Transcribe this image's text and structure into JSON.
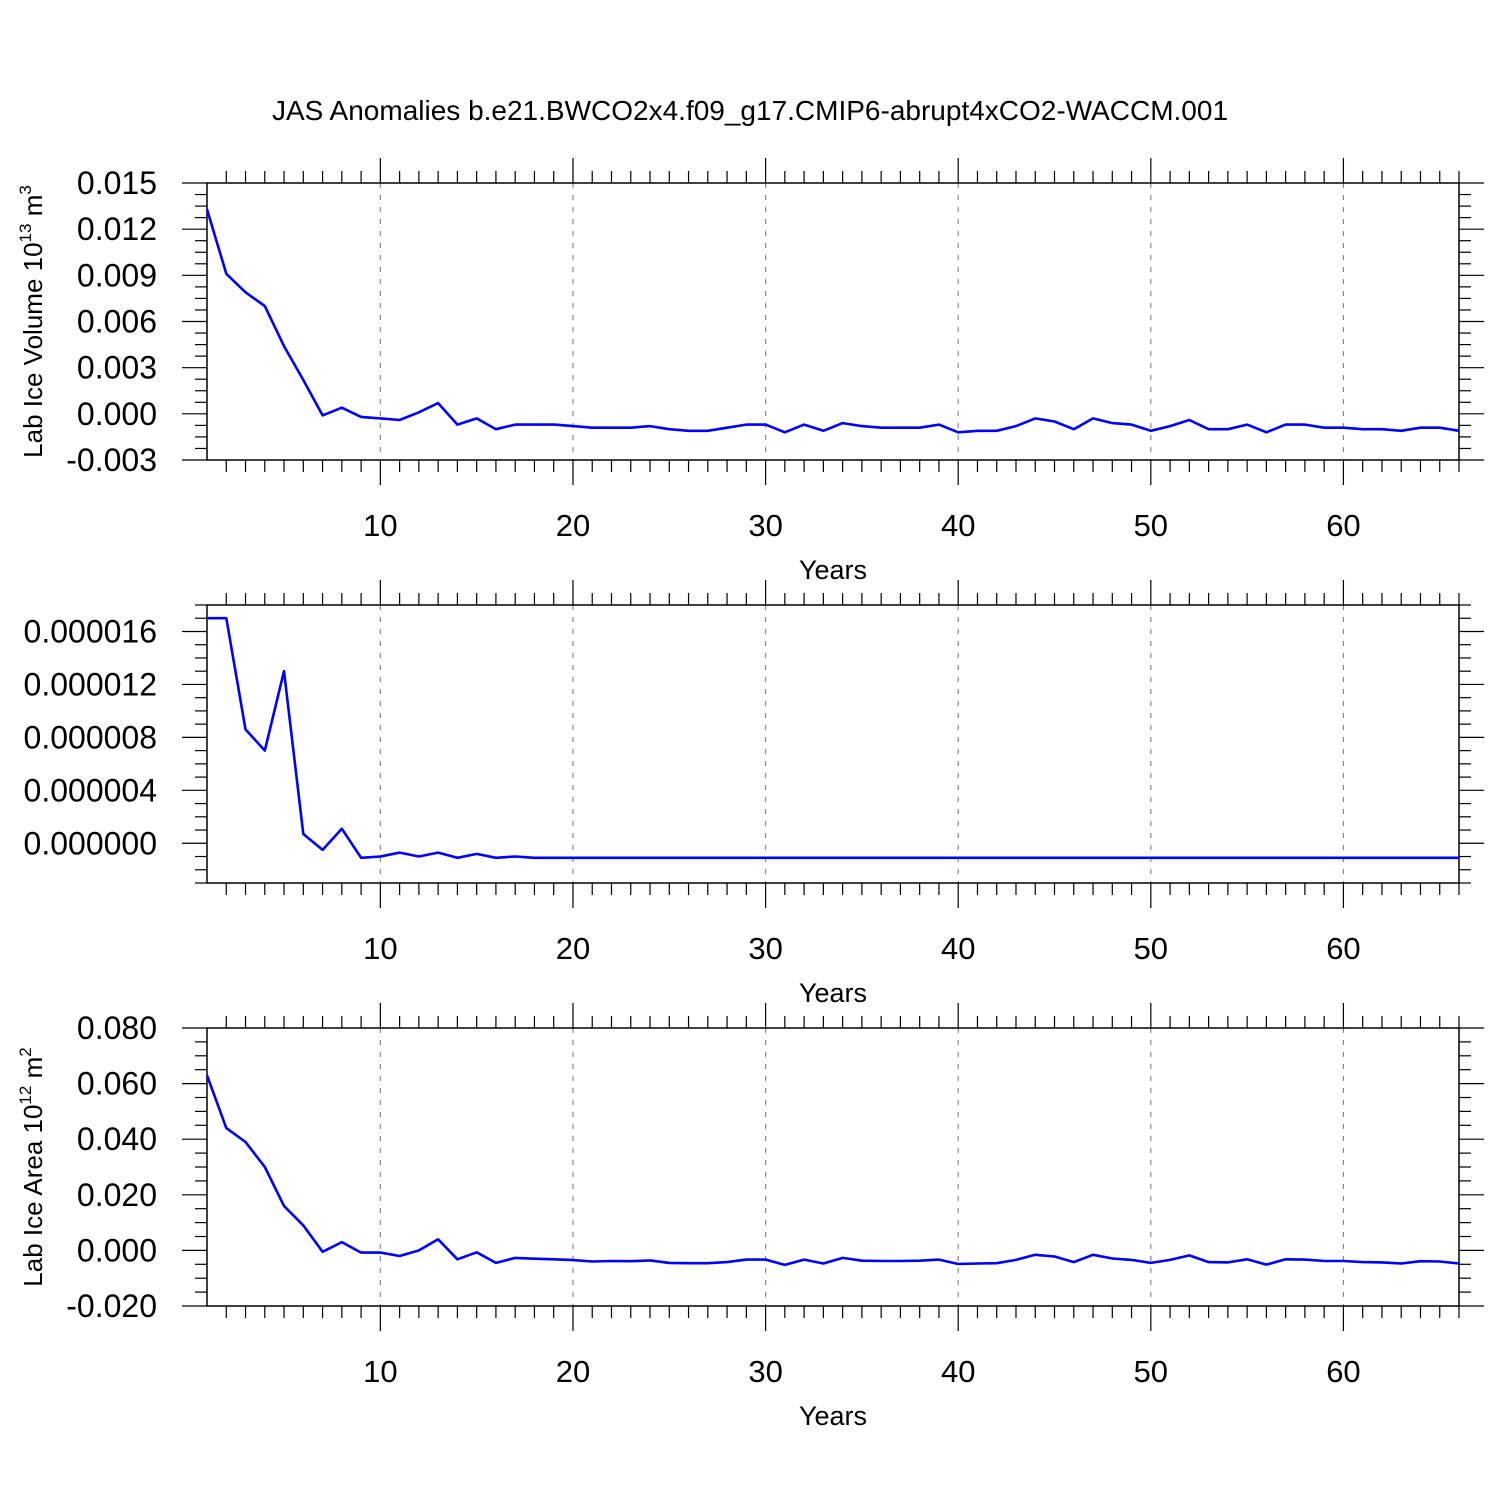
{
  "title": "JAS Anomalies b.e21.BWCO2x4.f09_g17.CMIP6-abrupt4xCO2-WACCM.001",
  "chart_data": [
    {
      "type": "line",
      "xlabel": "Years",
      "ylabel": "Lab Ice Volume 10",
      "ylabel_exp": "13",
      "ylabel_unit": " m",
      "ylabel_unit_exp": "3",
      "xlim": [
        1,
        66
      ],
      "ylim": [
        -0.003,
        0.015
      ],
      "yticks": [
        "0.015",
        "0.012",
        "0.009",
        "0.006",
        "0.003",
        "0.000",
        "-0.003"
      ],
      "ytick_values": [
        0.015,
        0.012,
        0.009,
        0.006,
        0.003,
        0.0,
        -0.003
      ],
      "xticks": [
        10,
        20,
        30,
        40,
        50,
        60
      ],
      "grid_x": true,
      "line_color": "#0000ff",
      "x": [
        1,
        2,
        3,
        4,
        5,
        6,
        7,
        8,
        9,
        10,
        11,
        12,
        13,
        14,
        15,
        16,
        17,
        18,
        19,
        20,
        21,
        22,
        23,
        24,
        25,
        26,
        27,
        28,
        29,
        30,
        31,
        32,
        33,
        34,
        35,
        36,
        37,
        38,
        39,
        40,
        41,
        42,
        43,
        44,
        45,
        46,
        47,
        48,
        49,
        50,
        51,
        52,
        53,
        54,
        55,
        56,
        57,
        58,
        59,
        60,
        61,
        62,
        63,
        64,
        65,
        66
      ],
      "y": [
        0.0133,
        0.0091,
        0.0079,
        0.007,
        0.0044,
        0.0022,
        -0.0001,
        0.0004,
        -0.0002,
        -0.0003,
        -0.0004,
        0.0001,
        0.0007,
        -0.0007,
        -0.0003,
        -0.001,
        -0.0007,
        -0.0007,
        -0.0007,
        -0.0008,
        -0.0009,
        -0.0009,
        -0.0009,
        -0.0008,
        -0.001,
        -0.0011,
        -0.0011,
        -0.0009,
        -0.0007,
        -0.0007,
        -0.0012,
        -0.0007,
        -0.0011,
        -0.0006,
        -0.0008,
        -0.0009,
        -0.0009,
        -0.0009,
        -0.0007,
        -0.0012,
        -0.0011,
        -0.0011,
        -0.0008,
        -0.0003,
        -0.0005,
        -0.001,
        -0.0003,
        -0.0006,
        -0.0007,
        -0.0011,
        -0.0008,
        -0.0004,
        -0.001,
        -0.001,
        -0.0007,
        -0.0012,
        -0.0007,
        -0.0007,
        -0.0009,
        -0.0009,
        -0.001,
        -0.001,
        -0.0011,
        -0.0009,
        -0.0009,
        -0.0011
      ]
    },
    {
      "type": "line",
      "xlabel": "Years",
      "ylabel": "",
      "ylabel_exp": "",
      "ylabel_unit": "",
      "ylabel_unit_exp": "",
      "xlim": [
        1,
        66
      ],
      "ylim": [
        -3e-06,
        1.8e-05
      ],
      "yticks": [
        "0.000016",
        "0.000012",
        "0.000008",
        "0.000004",
        "0.000000"
      ],
      "ytick_values": [
        1.6e-05,
        1.2e-05,
        8e-06,
        4e-06,
        0.0
      ],
      "xticks": [
        10,
        20,
        30,
        40,
        50,
        60
      ],
      "grid_x": true,
      "line_color": "#0000ff",
      "x": [
        1,
        2,
        3,
        4,
        5,
        6,
        7,
        8,
        9,
        10,
        11,
        12,
        13,
        14,
        15,
        16,
        17,
        18,
        19,
        20,
        21,
        22,
        23,
        24,
        25,
        26,
        27,
        28,
        29,
        30,
        31,
        32,
        33,
        34,
        35,
        36,
        37,
        38,
        39,
        40,
        41,
        42,
        43,
        44,
        45,
        46,
        47,
        48,
        49,
        50,
        51,
        52,
        53,
        54,
        55,
        56,
        57,
        58,
        59,
        60,
        61,
        62,
        63,
        64,
        65,
        66
      ],
      "y": [
        1.7e-05,
        1.7e-05,
        8.6e-06,
        7e-06,
        1.3e-05,
        7e-07,
        -5e-07,
        1.1e-06,
        -1.1e-06,
        -1e-06,
        -7e-07,
        -1e-06,
        -7e-07,
        -1.1e-06,
        -8e-07,
        -1.1e-06,
        -1e-06,
        -1.1e-06,
        -1.1e-06,
        -1.1e-06,
        -1.1e-06,
        -1.1e-06,
        -1.1e-06,
        -1.1e-06,
        -1.1e-06,
        -1.1e-06,
        -1.1e-06,
        -1.1e-06,
        -1.1e-06,
        -1.1e-06,
        -1.1e-06,
        -1.1e-06,
        -1.1e-06,
        -1.1e-06,
        -1.1e-06,
        -1.1e-06,
        -1.1e-06,
        -1.1e-06,
        -1.1e-06,
        -1.1e-06,
        -1.1e-06,
        -1.1e-06,
        -1.1e-06,
        -1.1e-06,
        -1.1e-06,
        -1.1e-06,
        -1.1e-06,
        -1.1e-06,
        -1.1e-06,
        -1.1e-06,
        -1.1e-06,
        -1.1e-06,
        -1.1e-06,
        -1.1e-06,
        -1.1e-06,
        -1.1e-06,
        -1.1e-06,
        -1.1e-06,
        -1.1e-06,
        -1.1e-06,
        -1.1e-06,
        -1.1e-06,
        -1.1e-06,
        -1.1e-06,
        -1.1e-06,
        -1.1e-06
      ]
    },
    {
      "type": "line",
      "xlabel": "Years",
      "ylabel": "Lab Ice Area 10",
      "ylabel_exp": "12",
      "ylabel_unit": " m",
      "ylabel_unit_exp": "2",
      "xlim": [
        1,
        66
      ],
      "ylim": [
        -0.02,
        0.08
      ],
      "yticks": [
        "0.080",
        "0.060",
        "0.040",
        "0.020",
        "0.000",
        "-0.020"
      ],
      "ytick_values": [
        0.08,
        0.06,
        0.04,
        0.02,
        0.0,
        -0.02
      ],
      "xticks": [
        10,
        20,
        30,
        40,
        50,
        60
      ],
      "grid_x": true,
      "line_color": "#0000ff",
      "x": [
        1,
        2,
        3,
        4,
        5,
        6,
        7,
        8,
        9,
        10,
        11,
        12,
        13,
        14,
        15,
        16,
        17,
        18,
        19,
        20,
        21,
        22,
        23,
        24,
        25,
        26,
        27,
        28,
        29,
        30,
        31,
        32,
        33,
        34,
        35,
        36,
        37,
        38,
        39,
        40,
        41,
        42,
        43,
        44,
        45,
        46,
        47,
        48,
        49,
        50,
        51,
        52,
        53,
        54,
        55,
        56,
        57,
        58,
        59,
        60,
        61,
        62,
        63,
        64,
        65,
        66
      ],
      "y": [
        0.063,
        0.044,
        0.039,
        0.03,
        0.016,
        0.009,
        -0.0005,
        0.003,
        -0.0008,
        -0.0008,
        -0.002,
        0.0,
        0.004,
        -0.0032,
        -0.0007,
        -0.0045,
        -0.0027,
        -0.003,
        -0.0032,
        -0.0035,
        -0.004,
        -0.0038,
        -0.0039,
        -0.0036,
        -0.0045,
        -0.0046,
        -0.0046,
        -0.0042,
        -0.0033,
        -0.0033,
        -0.0052,
        -0.0033,
        -0.0047,
        -0.0027,
        -0.0037,
        -0.0038,
        -0.0038,
        -0.0037,
        -0.0033,
        -0.0049,
        -0.0047,
        -0.0046,
        -0.0034,
        -0.0016,
        -0.0022,
        -0.0042,
        -0.0016,
        -0.0029,
        -0.0034,
        -0.0045,
        -0.0034,
        -0.0018,
        -0.0042,
        -0.0043,
        -0.0032,
        -0.0051,
        -0.0032,
        -0.0033,
        -0.0038,
        -0.0038,
        -0.0042,
        -0.0043,
        -0.0047,
        -0.0039,
        -0.004,
        -0.0047
      ]
    }
  ]
}
